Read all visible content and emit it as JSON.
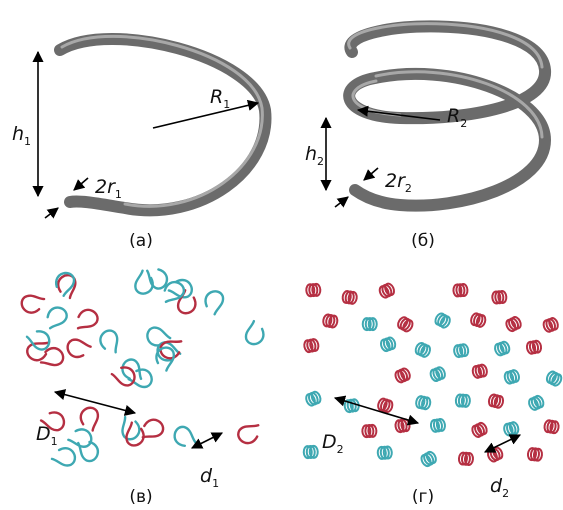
{
  "panels": [
    "(а)",
    "(б)",
    "(в)",
    "(г)"
  ],
  "labels": [
    {
      "symbol": "h",
      "subscript": "1"
    },
    {
      "symbol": "R",
      "subscript": "1"
    },
    {
      "symbol": "2r",
      "subscript": "1"
    },
    {
      "symbol": "h",
      "subscript": "2"
    },
    {
      "symbol": "R",
      "subscript": "2"
    },
    {
      "symbol": "2r",
      "subscript": "2"
    },
    {
      "symbol": "D",
      "subscript": "1"
    },
    {
      "symbol": "d",
      "subscript": "1"
    },
    {
      "symbol": "D",
      "subscript": "2"
    },
    {
      "symbol": "d",
      "subscript": "2"
    }
  ]
}
